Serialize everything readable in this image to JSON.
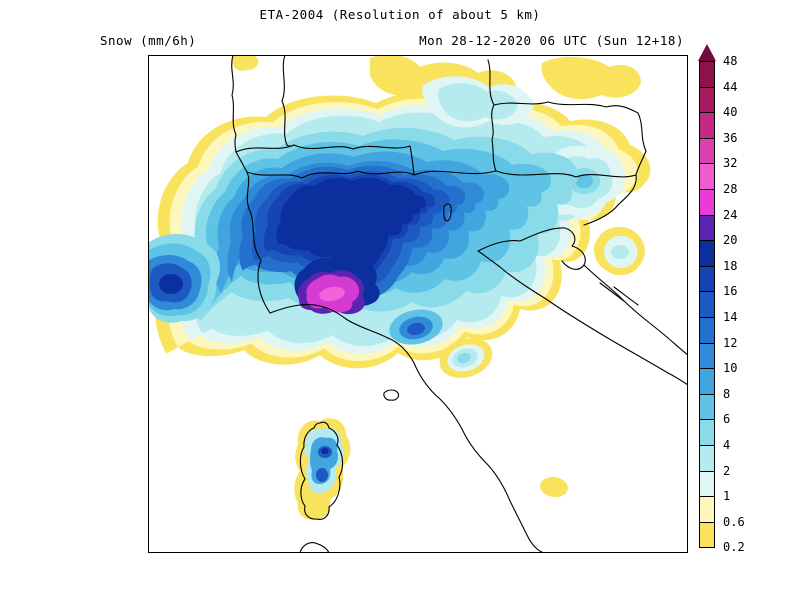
{
  "header": {
    "title": "ETA-2004 (Resolution of about 5 km)",
    "variable_label": "Snow (mm/6h)",
    "valid_label": "Mon 28-12-2020 06 UTC (Sun 12+18)"
  },
  "colorbar": {
    "tick_labels_top_to_bottom": [
      "48",
      "44",
      "40",
      "36",
      "32",
      "28",
      "24",
      "20",
      "18",
      "16",
      "14",
      "12",
      "10",
      "8",
      "6",
      "4",
      "2",
      "1",
      "0.6",
      "0.2"
    ],
    "segment_colors_top_to_bottom": [
      "#8C1248",
      "#A71B5E",
      "#C22A86",
      "#DC3FAE",
      "#EF5CCE",
      "#E93BD6",
      "#5A23B0",
      "#0C2F9E",
      "#1544B2",
      "#1C59C1",
      "#2471CD",
      "#2F8BD7",
      "#41A6DF",
      "#5FC3E6",
      "#89DBE9",
      "#B5EAEE",
      "#DFF6F4",
      "#FDF7BE",
      "#F9E25C"
    ],
    "overflow_arrow_color": "#74093C"
  },
  "chart_data": {
    "type": "heatmap",
    "title": "ETA-2004 (Resolution of about 5 km)",
    "variable": "Snow (mm/6h)",
    "valid_time": "Mon 28-12-2020 06 UTC (Sun 12+18)",
    "legend_levels": [
      0.2,
      0.6,
      1,
      2,
      4,
      6,
      8,
      10,
      12,
      14,
      16,
      18,
      20,
      24,
      28,
      32,
      36,
      40,
      44,
      48
    ],
    "legend_position": "right"
  }
}
